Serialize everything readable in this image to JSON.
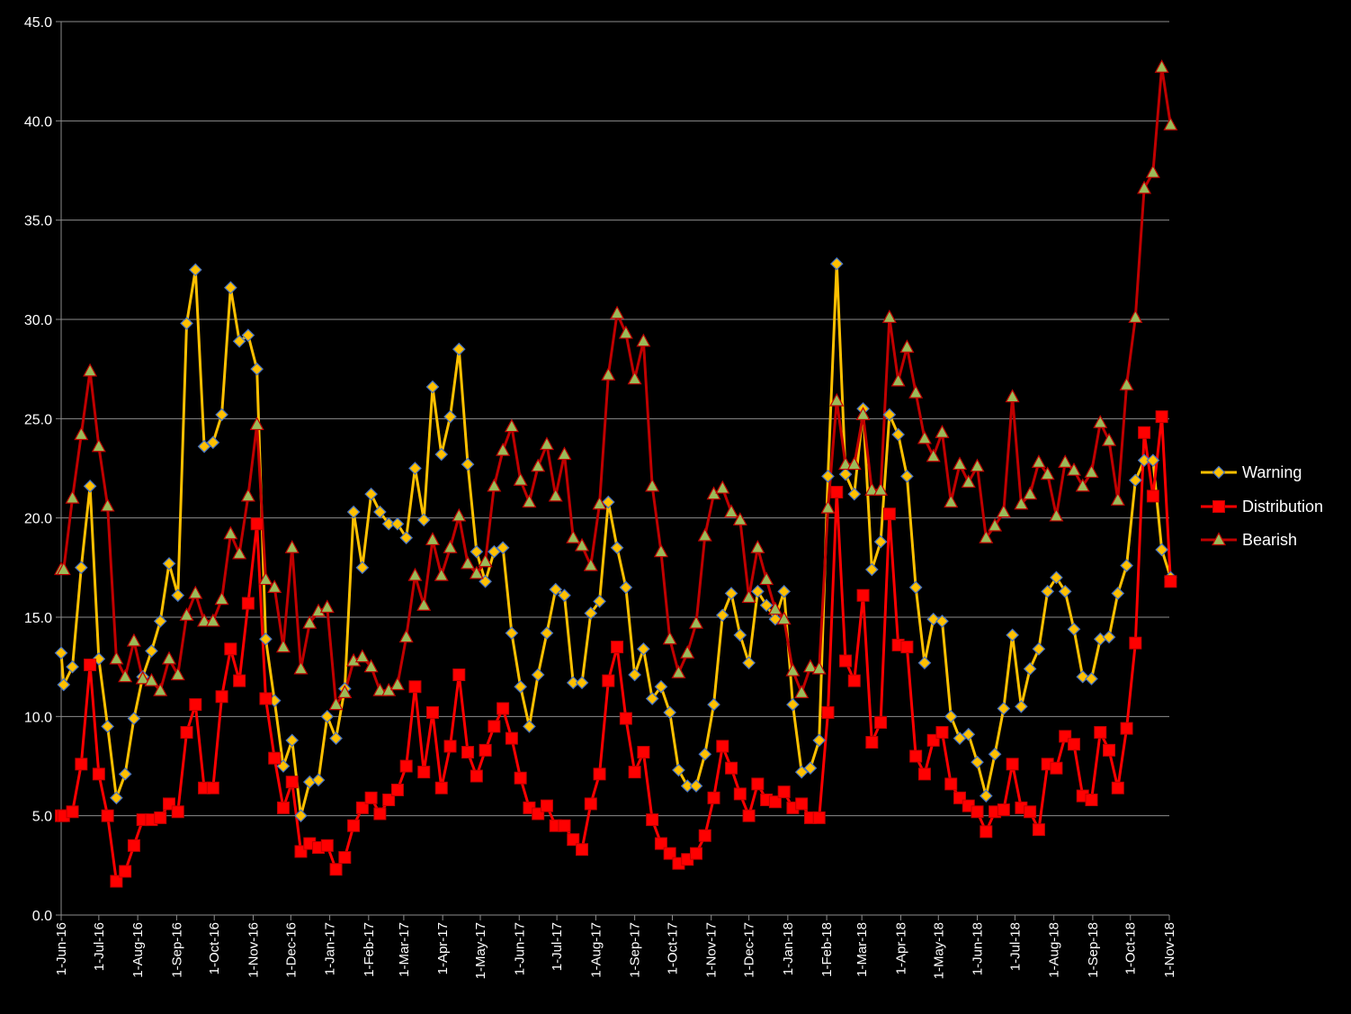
{
  "chart_data": {
    "type": "line",
    "title": "",
    "xlabel": "",
    "ylabel": "",
    "ylim": [
      0,
      45
    ],
    "y_ticks": [
      "0.0",
      "5.0",
      "10.0",
      "15.0",
      "20.0",
      "25.0",
      "30.0",
      "35.0",
      "40.0",
      "45.0"
    ],
    "x_range": [
      "2016-06-01",
      "2018-11-01"
    ],
    "x_ticks": [
      {
        "label": "1-Jun-16",
        "date": "2016-06-01"
      },
      {
        "label": "1-Jul-16",
        "date": "2016-07-01"
      },
      {
        "label": "1-Aug-16",
        "date": "2016-08-01"
      },
      {
        "label": "1-Sep-16",
        "date": "2016-09-01"
      },
      {
        "label": "1-Oct-16",
        "date": "2016-10-01"
      },
      {
        "label": "1-Nov-16",
        "date": "2016-11-01"
      },
      {
        "label": "1-Dec-16",
        "date": "2016-12-01"
      },
      {
        "label": "1-Jan-17",
        "date": "2017-01-01"
      },
      {
        "label": "1-Feb-17",
        "date": "2017-02-01"
      },
      {
        "label": "1-Mar-17",
        "date": "2017-03-01"
      },
      {
        "label": "1-Apr-17",
        "date": "2017-04-01"
      },
      {
        "label": "1-May-17",
        "date": "2017-05-01"
      },
      {
        "label": "1-Jun-17",
        "date": "2017-06-01"
      },
      {
        "label": "1-Jul-17",
        "date": "2017-07-01"
      },
      {
        "label": "1-Aug-17",
        "date": "2017-08-01"
      },
      {
        "label": "1-Sep-17",
        "date": "2017-09-01"
      },
      {
        "label": "1-Oct-17",
        "date": "2017-10-01"
      },
      {
        "label": "1-Nov-17",
        "date": "2017-11-01"
      },
      {
        "label": "1-Dec-17",
        "date": "2017-12-01"
      },
      {
        "label": "1-Jan-18",
        "date": "2018-01-01"
      },
      {
        "label": "1-Feb-18",
        "date": "2018-02-01"
      },
      {
        "label": "1-Mar-18",
        "date": "2018-03-01"
      },
      {
        "label": "1-Apr-18",
        "date": "2018-04-01"
      },
      {
        "label": "1-May-18",
        "date": "2018-05-01"
      },
      {
        "label": "1-Jun-18",
        "date": "2018-06-01"
      },
      {
        "label": "1-Jul-18",
        "date": "2018-07-01"
      },
      {
        "label": "1-Aug-18",
        "date": "2018-08-01"
      },
      {
        "label": "1-Sep-18",
        "date": "2018-09-01"
      },
      {
        "label": "1-Oct-18",
        "date": "2018-10-01"
      },
      {
        "label": "1-Nov-18",
        "date": "2018-11-01"
      }
    ],
    "grid": true,
    "legend_position": "right",
    "x": [
      "2016-06-01",
      "2016-06-03",
      "2016-06-10",
      "2016-06-17",
      "2016-06-24",
      "2016-07-01",
      "2016-07-08",
      "2016-07-15",
      "2016-07-22",
      "2016-07-29",
      "2016-08-05",
      "2016-08-12",
      "2016-08-19",
      "2016-08-26",
      "2016-09-02",
      "2016-09-09",
      "2016-09-16",
      "2016-09-23",
      "2016-09-30",
      "2016-10-07",
      "2016-10-14",
      "2016-10-21",
      "2016-10-28",
      "2016-11-04",
      "2016-11-11",
      "2016-11-18",
      "2016-11-25",
      "2016-12-02",
      "2016-12-09",
      "2016-12-16",
      "2016-12-23",
      "2016-12-30",
      "2017-01-06",
      "2017-01-13",
      "2017-01-20",
      "2017-01-27",
      "2017-02-03",
      "2017-02-10",
      "2017-02-17",
      "2017-02-24",
      "2017-03-03",
      "2017-03-10",
      "2017-03-17",
      "2017-03-24",
      "2017-03-31",
      "2017-04-07",
      "2017-04-14",
      "2017-04-21",
      "2017-04-28",
      "2017-05-05",
      "2017-05-12",
      "2017-05-19",
      "2017-05-26",
      "2017-06-02",
      "2017-06-09",
      "2017-06-16",
      "2017-06-23",
      "2017-06-30",
      "2017-07-07",
      "2017-07-14",
      "2017-07-21",
      "2017-07-28",
      "2017-08-04",
      "2017-08-11",
      "2017-08-18",
      "2017-08-25",
      "2017-09-01",
      "2017-09-08",
      "2017-09-15",
      "2017-09-22",
      "2017-09-29",
      "2017-10-06",
      "2017-10-13",
      "2017-10-20",
      "2017-10-27",
      "2017-11-03",
      "2017-11-10",
      "2017-11-17",
      "2017-11-24",
      "2017-12-01",
      "2017-12-08",
      "2017-12-15",
      "2017-12-22",
      "2017-12-29",
      "2018-01-05",
      "2018-01-12",
      "2018-01-19",
      "2018-01-26",
      "2018-02-02",
      "2018-02-09",
      "2018-02-16",
      "2018-02-23",
      "2018-03-02",
      "2018-03-09",
      "2018-03-16",
      "2018-03-23",
      "2018-03-30",
      "2018-04-06",
      "2018-04-13",
      "2018-04-20",
      "2018-04-27",
      "2018-05-04",
      "2018-05-11",
      "2018-05-18",
      "2018-05-25",
      "2018-06-01",
      "2018-06-08",
      "2018-06-15",
      "2018-06-22",
      "2018-06-29",
      "2018-07-06",
      "2018-07-13",
      "2018-07-20",
      "2018-07-27",
      "2018-08-03",
      "2018-08-10",
      "2018-08-17",
      "2018-08-24",
      "2018-08-31",
      "2018-09-07",
      "2018-09-14",
      "2018-09-21",
      "2018-09-28",
      "2018-10-05",
      "2018-10-12",
      "2018-10-19",
      "2018-10-26",
      "2018-11-02"
    ],
    "series": [
      {
        "name": "Warning",
        "color": "#FFC000",
        "marker": "diamond",
        "values": [
          13.2,
          11.6,
          12.5,
          17.5,
          21.6,
          12.9,
          9.5,
          5.9,
          7.1,
          9.9,
          12.0,
          13.3,
          14.8,
          17.7,
          16.1,
          29.8,
          32.5,
          23.6,
          23.8,
          25.2,
          31.6,
          28.9,
          29.2,
          27.5,
          13.9,
          10.8,
          7.5,
          8.8,
          5.0,
          6.7,
          6.8,
          10.0,
          8.9,
          11.4,
          20.3,
          17.5,
          21.2,
          20.3,
          19.7,
          19.7,
          19.0,
          22.5,
          19.9,
          26.6,
          23.2,
          25.1,
          28.5,
          22.7,
          18.3,
          16.8,
          18.3,
          18.5,
          14.2,
          11.5,
          9.5,
          12.1,
          14.2,
          16.4,
          16.1,
          11.7,
          11.7,
          15.2,
          15.8,
          20.8,
          18.5,
          16.5,
          12.1,
          13.4,
          10.9,
          11.5,
          10.2,
          7.3,
          6.5,
          6.5,
          8.1,
          10.6,
          15.1,
          16.2,
          14.1,
          12.7,
          16.3,
          15.6,
          14.9,
          16.3,
          10.6,
          7.2,
          7.4,
          8.8,
          22.1,
          32.8,
          22.2,
          21.2,
          25.5,
          17.4,
          18.8,
          25.2,
          24.2,
          22.1,
          16.5,
          12.7,
          14.9,
          14.8,
          10.0,
          8.9,
          9.1,
          7.7,
          6.0,
          8.1,
          10.4,
          14.1,
          10.5,
          12.4,
          13.4,
          16.3,
          17.0,
          16.3,
          14.4,
          12.0,
          11.9,
          13.9,
          14.0,
          16.2,
          17.6,
          21.9,
          22.9,
          22.9,
          18.4,
          17.0
        ]
      },
      {
        "name": "Distribution",
        "color": "#FF0000",
        "marker": "square",
        "values": [
          5.0,
          5.0,
          5.2,
          7.6,
          12.6,
          7.1,
          5.0,
          1.7,
          2.2,
          3.5,
          4.8,
          4.8,
          4.9,
          5.6,
          5.2,
          9.2,
          10.6,
          6.4,
          6.4,
          11.0,
          13.4,
          11.8,
          15.7,
          19.7,
          10.9,
          7.9,
          5.4,
          6.7,
          3.2,
          3.6,
          3.4,
          3.5,
          2.3,
          2.9,
          4.5,
          5.4,
          5.9,
          5.1,
          5.8,
          6.3,
          7.5,
          11.5,
          7.2,
          10.2,
          6.4,
          8.5,
          12.1,
          8.2,
          7.0,
          8.3,
          9.5,
          10.4,
          8.9,
          6.9,
          5.4,
          5.1,
          5.5,
          4.5,
          4.5,
          3.8,
          3.3,
          5.6,
          7.1,
          11.8,
          13.5,
          9.9,
          7.2,
          8.2,
          4.8,
          3.6,
          3.1,
          2.6,
          2.8,
          3.1,
          4.0,
          5.9,
          8.5,
          7.4,
          6.1,
          5.0,
          6.6,
          5.8,
          5.7,
          6.2,
          5.4,
          5.6,
          4.9,
          4.9,
          10.2,
          21.3,
          12.8,
          11.8,
          16.1,
          8.7,
          9.7,
          20.2,
          13.6,
          13.5,
          8.0,
          7.1,
          8.8,
          9.2,
          6.6,
          5.9,
          5.5,
          5.2,
          4.2,
          5.2,
          5.3,
          7.6,
          5.4,
          5.2,
          4.3,
          7.6,
          7.4,
          9.0,
          8.6,
          6.0,
          5.8,
          9.2,
          8.3,
          6.4,
          9.4,
          13.7,
          24.3,
          21.1,
          25.1,
          16.8
        ]
      },
      {
        "name": "Bearish",
        "color": "#C00000",
        "marker": "triangle",
        "values": [
          17.4,
          17.4,
          21.0,
          24.2,
          27.4,
          23.6,
          20.6,
          12.9,
          12.0,
          13.8,
          11.9,
          11.8,
          11.3,
          12.9,
          12.1,
          15.1,
          16.2,
          14.8,
          14.8,
          15.9,
          19.2,
          18.2,
          21.1,
          24.7,
          16.9,
          16.5,
          13.5,
          18.5,
          12.4,
          14.7,
          15.3,
          15.5,
          10.6,
          11.2,
          12.8,
          13.0,
          12.5,
          11.3,
          11.3,
          11.6,
          14.0,
          17.1,
          15.6,
          18.9,
          17.1,
          18.5,
          20.1,
          17.7,
          17.2,
          17.8,
          21.6,
          23.4,
          24.6,
          21.9,
          20.8,
          22.6,
          23.7,
          21.1,
          23.2,
          19.0,
          18.6,
          17.6,
          20.7,
          27.2,
          30.3,
          29.3,
          27.0,
          28.9,
          21.6,
          18.3,
          13.9,
          12.2,
          13.2,
          14.7,
          19.1,
          21.2,
          21.5,
          20.3,
          19.9,
          16.0,
          18.5,
          16.9,
          15.4,
          14.9,
          12.3,
          11.2,
          12.5,
          12.4,
          20.5,
          25.9,
          22.7,
          22.7,
          25.2,
          21.4,
          21.4,
          30.1,
          26.9,
          28.6,
          26.3,
          24.0,
          23.1,
          24.3,
          20.8,
          22.7,
          21.8,
          22.6,
          19.0,
          19.6,
          20.3,
          26.1,
          20.7,
          21.2,
          22.8,
          22.2,
          20.1,
          22.8,
          22.4,
          21.6,
          22.3,
          24.8,
          23.9,
          20.9,
          26.7,
          30.1,
          36.6,
          37.4,
          42.7,
          39.8
        ]
      }
    ]
  }
}
